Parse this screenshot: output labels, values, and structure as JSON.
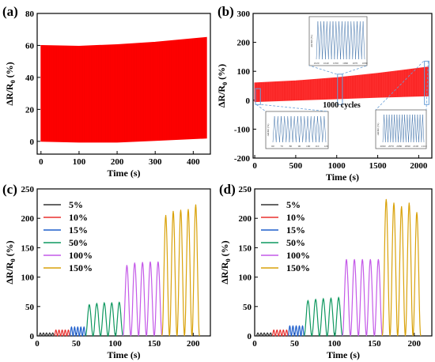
{
  "chart_data": [
    {
      "panel": "(a)",
      "type": "area",
      "xlabel": "Time (s)",
      "ylabel": "ΔR/R0 (%)",
      "xlim": [
        -10,
        445
      ],
      "ylim": [
        -8,
        80
      ],
      "xticks": [
        0,
        100,
        200,
        300,
        400
      ],
      "yticks": [
        0,
        20,
        40,
        60,
        80
      ],
      "series": [
        {
          "color": "#ff0000",
          "x": [
            0,
            100,
            200,
            300,
            435
          ],
          "upper": [
            60,
            59.5,
            60.5,
            62,
            65
          ],
          "lower": [
            0,
            -0.5,
            -0.5,
            0.5,
            2
          ]
        }
      ]
    },
    {
      "panel": "(b)",
      "type": "area",
      "xlabel": "Time (s)",
      "ylabel": "ΔR/R0 (%)",
      "xlim": [
        -20,
        2160
      ],
      "ylim": [
        -200,
        300
      ],
      "xticks": [
        0,
        500,
        1000,
        1500,
        2000
      ],
      "yticks": [
        -200,
        -100,
        0,
        100,
        200,
        300
      ],
      "annotations": [
        "1000 cycles"
      ],
      "series": [
        {
          "color": "#ff3030",
          "x": [
            0,
            500,
            1000,
            1500,
            2120
          ],
          "upper": [
            60,
            67,
            78,
            93,
            115
          ],
          "lower": [
            -5,
            0,
            5,
            10,
            15
          ]
        }
      ],
      "insets": [
        {
          "position": "bottom-left",
          "xticks": [
            "60",
            "70",
            "80",
            "90",
            "100",
            "110",
            "120"
          ],
          "ylabel": "ΔR/R0 (%)"
        },
        {
          "position": "top",
          "xticks": [
            "1020",
            "1040",
            "1050",
            "1060",
            "1070",
            "1080"
          ],
          "ylabel": "ΔR/R0 (%)"
        },
        {
          "position": "bottom-right",
          "xticks": [
            "2060",
            "2070",
            "2080",
            "2090",
            "2100",
            "2110"
          ],
          "ylabel": "ΔR/R0 (%)"
        }
      ]
    },
    {
      "panel": "(c)",
      "type": "line",
      "xlabel": "Time (s)",
      "ylabel": "ΔR/R0 (%)",
      "xlim": [
        0,
        222
      ],
      "ylim": [
        0,
        250
      ],
      "xticks": [
        0,
        50,
        100,
        150,
        200
      ],
      "yticks": [
        0,
        50,
        100,
        150,
        200,
        250
      ],
      "legend": "top-left",
      "series": [
        {
          "name": "5%",
          "color": "#333333",
          "t_start": 2,
          "t_end": 22,
          "cycles": 5,
          "peaks": [
            5,
            5,
            5,
            5,
            5
          ]
        },
        {
          "name": "10%",
          "color": "#e8312f",
          "t_start": 22,
          "t_end": 42,
          "cycles": 5,
          "peaks": [
            10,
            10,
            10,
            10,
            10
          ]
        },
        {
          "name": "15%",
          "color": "#1f5fcc",
          "t_start": 42,
          "t_end": 62,
          "cycles": 5,
          "peaks": [
            15,
            15,
            15,
            15,
            15
          ]
        },
        {
          "name": "50%",
          "color": "#0f9860",
          "t_start": 62,
          "t_end": 110,
          "cycles": 5,
          "peaks": [
            53,
            55,
            56,
            56,
            57
          ]
        },
        {
          "name": "100%",
          "color": "#c45ae8",
          "t_start": 110,
          "t_end": 160,
          "cycles": 5,
          "peaks": [
            120,
            124,
            125,
            126,
            126
          ]
        },
        {
          "name": "150%",
          "color": "#d9a20a",
          "t_start": 160,
          "t_end": 208,
          "cycles": 5,
          "peaks": [
            205,
            212,
            214,
            215,
            223
          ]
        }
      ]
    },
    {
      "panel": "(d)",
      "type": "line",
      "xlabel": "Time (s)",
      "ylabel": "ΔR/R0 (%)",
      "xlim": [
        0,
        222
      ],
      "ylim": [
        0,
        250
      ],
      "xticks": [
        0,
        50,
        100,
        150,
        200
      ],
      "yticks": [
        0,
        50,
        100,
        150,
        200,
        250
      ],
      "legend": "top-left",
      "series": [
        {
          "name": "5%",
          "color": "#333333",
          "t_start": 2,
          "t_end": 22,
          "cycles": 5,
          "peaks": [
            5,
            5,
            5,
            5,
            5
          ]
        },
        {
          "name": "10%",
          "color": "#e8312f",
          "t_start": 22,
          "t_end": 42,
          "cycles": 5,
          "peaks": [
            10,
            10,
            10,
            10,
            10
          ]
        },
        {
          "name": "15%",
          "color": "#1f5fcc",
          "t_start": 42,
          "t_end": 62,
          "cycles": 5,
          "peaks": [
            17,
            17,
            17,
            17,
            17
          ]
        },
        {
          "name": "50%",
          "color": "#0f9860",
          "t_start": 62,
          "t_end": 110,
          "cycles": 5,
          "peaks": [
            60,
            62,
            63,
            64,
            65
          ]
        },
        {
          "name": "100%",
          "color": "#c45ae8",
          "t_start": 110,
          "t_end": 160,
          "cycles": 5,
          "peaks": [
            130,
            130,
            130,
            130,
            130
          ]
        },
        {
          "name": "150%",
          "color": "#d9a20a",
          "t_start": 160,
          "t_end": 208,
          "cycles": 5,
          "peaks": [
            232,
            226,
            220,
            226,
            210
          ]
        }
      ]
    }
  ]
}
